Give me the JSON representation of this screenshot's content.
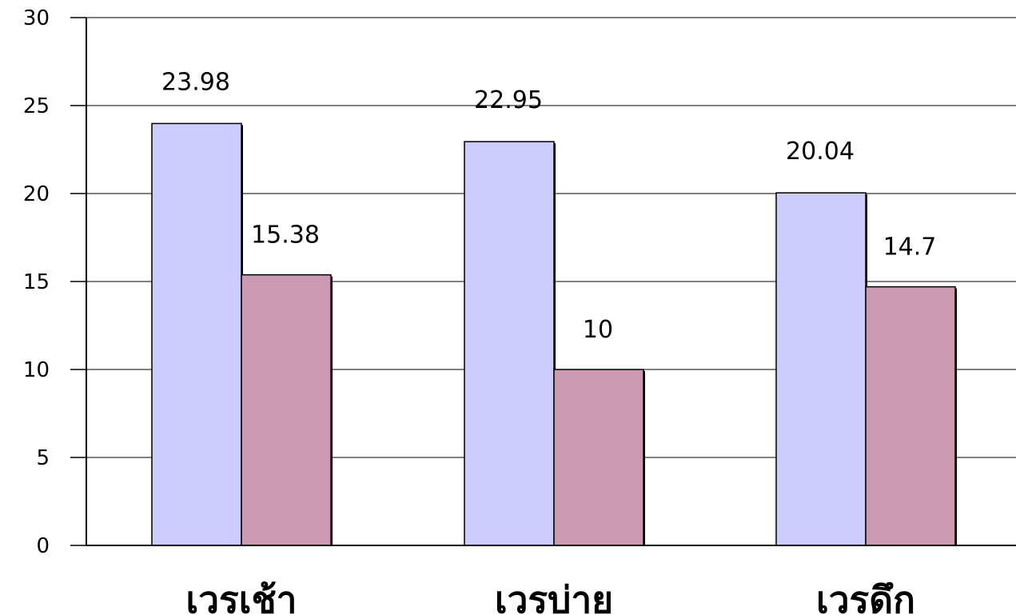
{
  "chart_data": {
    "type": "bar",
    "categories": [
      "เวรเช้า",
      "เวรบ่าย",
      "เวรดึก"
    ],
    "series": [
      {
        "values": [
          23.98,
          22.95,
          20.04
        ],
        "color": "#ccccff"
      },
      {
        "values": [
          15.38,
          10,
          14.7
        ],
        "color": "#cc99b2"
      }
    ],
    "data_labels": [
      [
        "23.98",
        "22.95",
        "20.04"
      ],
      [
        "15.38",
        "10",
        "14.7"
      ]
    ],
    "yticks": [
      "0",
      "5",
      "10",
      "15",
      "20",
      "25",
      "30"
    ],
    "ylim": [
      0,
      30
    ],
    "grid": true,
    "legend": "none",
    "gridline_color": "#000000"
  }
}
